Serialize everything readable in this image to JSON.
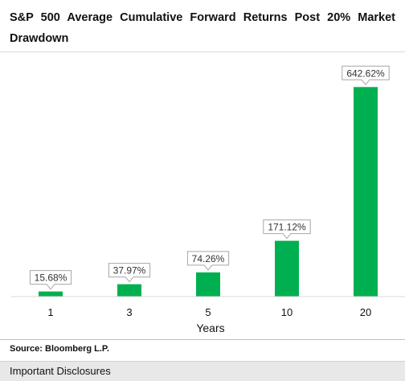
{
  "title": "S&P 500 Average Cumulative Forward Returns Post 20% Market Drawdown",
  "source": "Source:  Bloomberg L.P.",
  "disclosures_label": "Important Disclosures",
  "colors": {
    "bar": "#00b050",
    "label_border": "#a6a6a6",
    "axis": "#d9d9d9"
  },
  "chart_data": {
    "type": "bar",
    "title": "S&P 500 Average Cumulative Forward Returns Post 20% Market Drawdown",
    "xlabel": "Years",
    "ylabel": "",
    "categories": [
      "1",
      "3",
      "5",
      "10",
      "20"
    ],
    "values": [
      15.68,
      37.97,
      74.26,
      171.12,
      642.62
    ],
    "data_labels": [
      "15.68%",
      "37.97%",
      "74.26%",
      "171.12%",
      "642.62%"
    ],
    "ylim": [
      0,
      700
    ],
    "grid": false,
    "legend": "none"
  }
}
